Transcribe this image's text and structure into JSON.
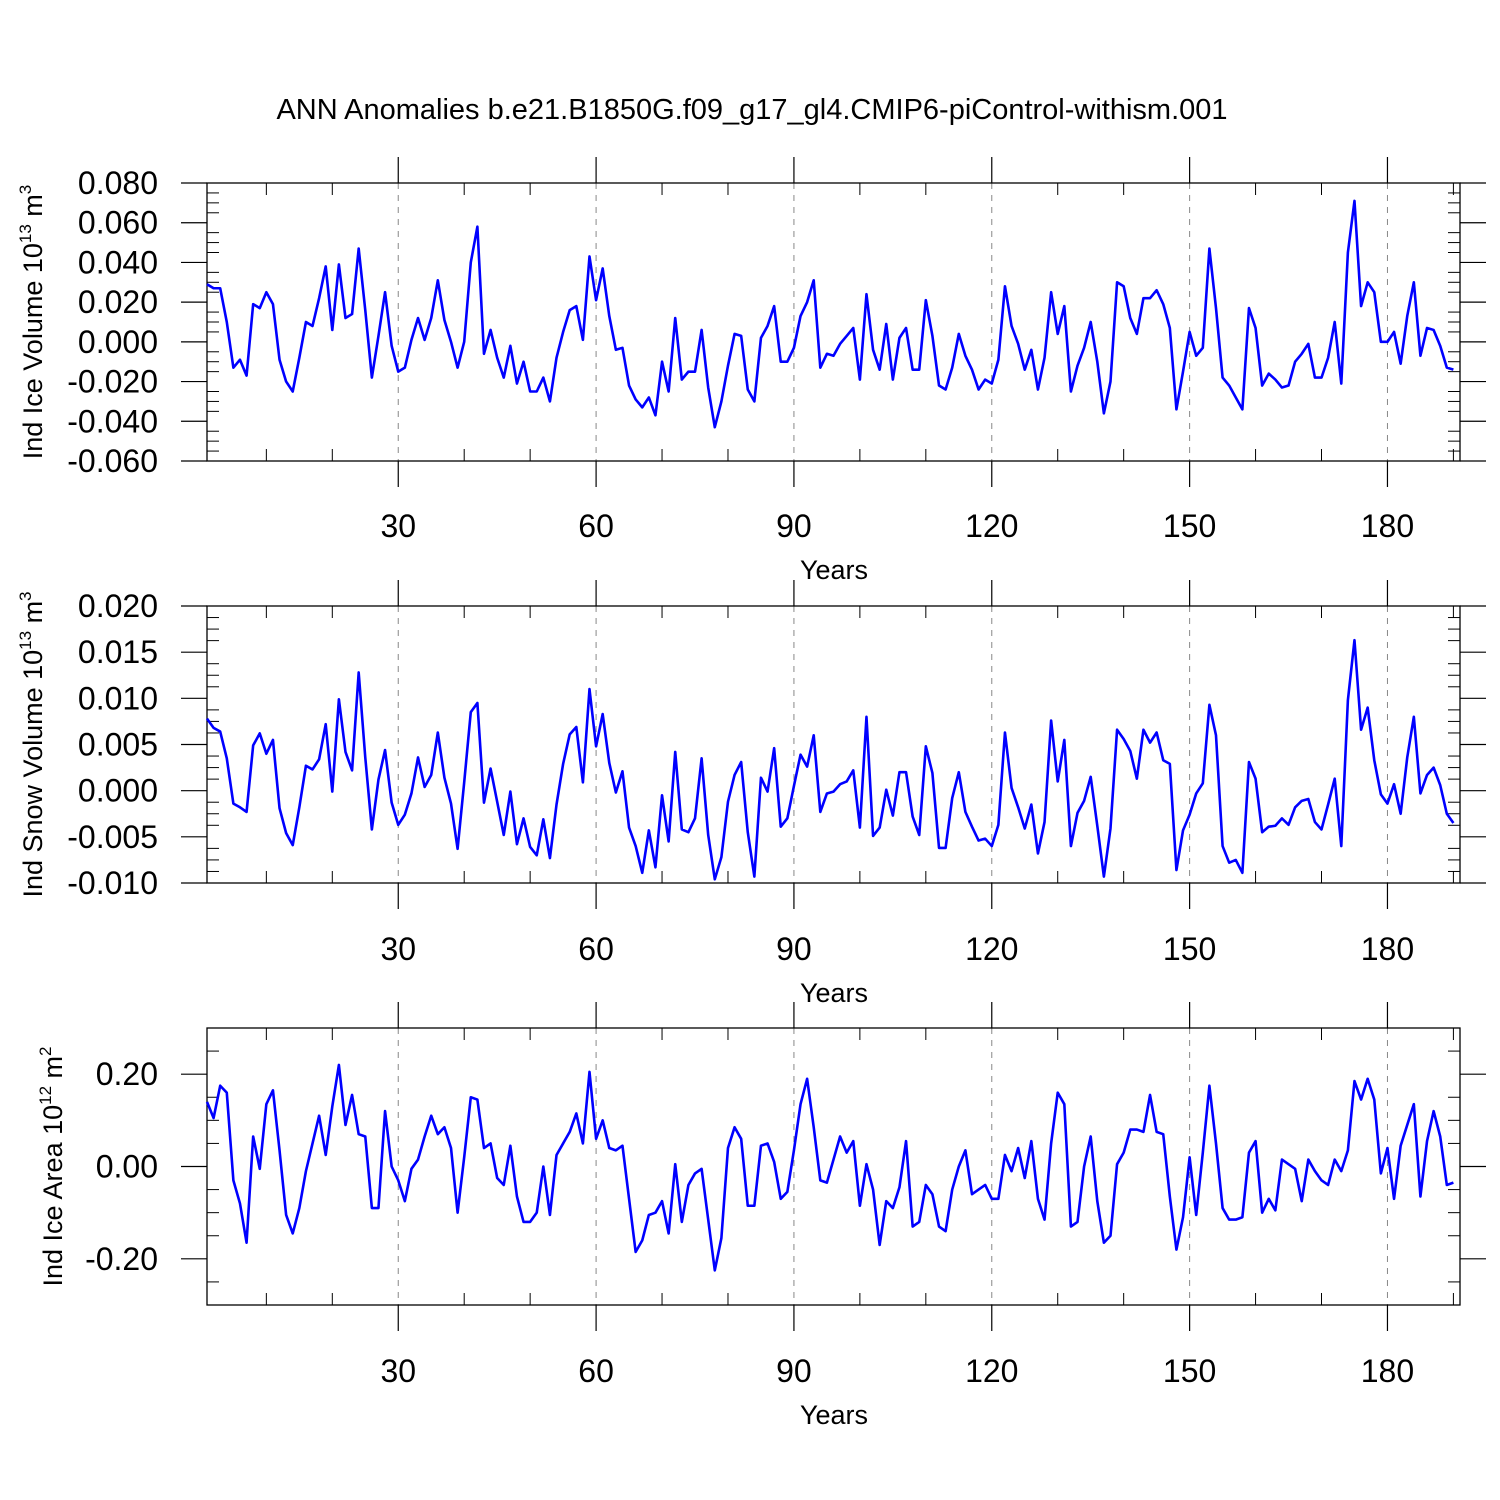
{
  "figure_title": "ANN Anomalies b.e21.B1850G.f09_g17_gl4.CMIP6-piControl-withism.001",
  "colors": {
    "line": "#0000ff",
    "frame": "#000000",
    "grid": "#888888"
  },
  "chart_data": [
    {
      "type": "line",
      "ylabel": "Ind Ice Volume 10",
      "ylabel_sup": "13",
      "ylabel_unit": " m",
      "ylabel_unit_sup": "3",
      "xlabel": "Years",
      "xlim": [
        1,
        191
      ],
      "ylim": [
        -0.06,
        0.08
      ],
      "xticks": [
        30,
        60,
        90,
        120,
        150,
        180
      ],
      "xticklabels": [
        "30",
        "60",
        "90",
        "120",
        "150",
        "180"
      ],
      "yticks": [
        -0.06,
        -0.04,
        -0.02,
        0.0,
        0.02,
        0.04,
        0.06,
        0.08
      ],
      "yticklabels": [
        "-0.060",
        "-0.040",
        "-0.020",
        "0.000",
        "0.020",
        "0.040",
        "0.060",
        "0.080"
      ],
      "grid": "x-dashed",
      "x_start": 1,
      "values": [
        0.029,
        0.027,
        0.027,
        0.01,
        -0.013,
        -0.009,
        -0.017,
        0.019,
        0.017,
        0.025,
        0.019,
        -0.009,
        -0.02,
        -0.025,
        -0.008,
        0.01,
        0.008,
        0.022,
        0.038,
        0.006,
        0.039,
        0.012,
        0.014,
        0.047,
        0.016,
        -0.018,
        0.003,
        0.025,
        -0.002,
        -0.015,
        -0.013,
        0.001,
        0.012,
        0.001,
        0.012,
        0.031,
        0.011,
        0.0,
        -0.013,
        0.0,
        0.04,
        0.058,
        -0.006,
        0.006,
        -0.008,
        -0.018,
        -0.002,
        -0.021,
        -0.01,
        -0.025,
        -0.025,
        -0.018,
        -0.03,
        -0.008,
        0.005,
        0.016,
        0.018,
        0.001,
        0.043,
        0.021,
        0.037,
        0.013,
        -0.004,
        -0.003,
        -0.022,
        -0.029,
        -0.033,
        -0.028,
        -0.037,
        -0.01,
        -0.025,
        0.012,
        -0.019,
        -0.015,
        -0.015,
        0.006,
        -0.023,
        -0.043,
        -0.03,
        -0.012,
        0.004,
        0.003,
        -0.024,
        -0.03,
        0.002,
        0.008,
        0.018,
        -0.01,
        -0.01,
        -0.003,
        0.013,
        0.02,
        0.031,
        -0.013,
        -0.006,
        -0.007,
        -0.001,
        0.003,
        0.007,
        -0.019,
        0.024,
        -0.004,
        -0.014,
        0.009,
        -0.019,
        0.002,
        0.007,
        -0.014,
        -0.014,
        0.021,
        0.003,
        -0.022,
        -0.024,
        -0.013,
        0.004,
        -0.007,
        -0.014,
        -0.024,
        -0.019,
        -0.021,
        -0.009,
        0.028,
        0.008,
        -0.001,
        -0.014,
        -0.004,
        -0.024,
        -0.008,
        0.025,
        0.004,
        0.018,
        -0.025,
        -0.012,
        -0.003,
        0.01,
        -0.01,
        -0.036,
        -0.02,
        0.03,
        0.028,
        0.012,
        0.004,
        0.022,
        0.022,
        0.026,
        0.019,
        0.007,
        -0.034,
        -0.015,
        0.005,
        -0.007,
        -0.003,
        0.047,
        0.017,
        -0.018,
        -0.022,
        -0.028,
        -0.034,
        0.017,
        0.007,
        -0.022,
        -0.016,
        -0.019,
        -0.023,
        -0.022,
        -0.01,
        -0.006,
        -0.001,
        -0.018,
        -0.018,
        -0.008,
        0.01,
        -0.021,
        0.045,
        0.071,
        0.018,
        0.03,
        0.025,
        0.0,
        0.0,
        0.005,
        -0.011,
        0.013,
        0.03,
        -0.007,
        0.007,
        0.006,
        -0.002,
        -0.013,
        -0.014
      ]
    },
    {
      "type": "line",
      "ylabel": "Ind Snow Volume 10",
      "ylabel_sup": "13",
      "ylabel_unit": " m",
      "ylabel_unit_sup": "3",
      "xlabel": "Years",
      "xlim": [
        1,
        191
      ],
      "ylim": [
        -0.01,
        0.02
      ],
      "xticks": [
        30,
        60,
        90,
        120,
        150,
        180
      ],
      "xticklabels": [
        "30",
        "60",
        "90",
        "120",
        "150",
        "180"
      ],
      "yticks": [
        -0.01,
        -0.005,
        0.0,
        0.005,
        0.01,
        0.015,
        0.02
      ],
      "yticklabels": [
        "-0.010",
        "-0.005",
        "0.000",
        "0.005",
        "0.010",
        "0.015",
        "0.020"
      ],
      "grid": "x-dashed",
      "x_start": 1,
      "values": [
        0.0078,
        0.0068,
        0.0064,
        0.0035,
        -0.0014,
        -0.0018,
        -0.0023,
        0.0049,
        0.0062,
        0.004,
        0.0055,
        -0.0019,
        -0.0046,
        -0.0059,
        -0.0018,
        0.0027,
        0.0023,
        0.0034,
        0.0072,
        -0.0001,
        0.0099,
        0.0042,
        0.0022,
        0.0128,
        0.0036,
        -0.0042,
        0.0012,
        0.0044,
        -0.0013,
        -0.0037,
        -0.0026,
        -0.0003,
        0.0036,
        0.0004,
        0.0017,
        0.0063,
        0.0014,
        -0.0014,
        -0.0063,
        0.0009,
        0.0085,
        0.0095,
        -0.0013,
        0.0024,
        -0.0012,
        -0.0048,
        -0.0001,
        -0.0058,
        -0.003,
        -0.0061,
        -0.007,
        -0.0031,
        -0.0073,
        -0.0015,
        0.0029,
        0.0061,
        0.0069,
        0.0009,
        0.011,
        0.0048,
        0.0083,
        0.003,
        -0.0002,
        0.0021,
        -0.004,
        -0.006,
        -0.0089,
        -0.0043,
        -0.0083,
        -0.0005,
        -0.0055,
        0.0042,
        -0.0042,
        -0.0045,
        -0.003,
        0.0035,
        -0.0048,
        -0.0096,
        -0.0072,
        -0.0012,
        0.0017,
        0.0031,
        -0.0045,
        -0.0093,
        0.0014,
        -0.0001,
        0.0046,
        -0.0039,
        -0.003,
        0.0005,
        0.0039,
        0.0026,
        0.006,
        -0.0023,
        -0.0003,
        -0.0001,
        0.0007,
        0.001,
        0.0022,
        -0.004,
        0.008,
        -0.0049,
        -0.004,
        0.0001,
        -0.0027,
        0.002,
        0.002,
        -0.0028,
        -0.0048,
        0.0048,
        0.0019,
        -0.0062,
        -0.0062,
        -0.0008,
        0.002,
        -0.0023,
        -0.0039,
        -0.0054,
        -0.0052,
        -0.006,
        -0.0037,
        0.0063,
        0.0003,
        -0.0018,
        -0.0041,
        -0.0015,
        -0.0068,
        -0.0034,
        0.0076,
        0.001,
        0.0055,
        -0.006,
        -0.0024,
        -0.0011,
        0.0015,
        -0.0038,
        -0.0093,
        -0.0041,
        0.0066,
        0.0056,
        0.0043,
        0.0013,
        0.0066,
        0.0052,
        0.0063,
        0.0033,
        0.0029,
        -0.0086,
        -0.0043,
        -0.0026,
        -0.0003,
        0.0008,
        0.0093,
        0.006,
        -0.006,
        -0.0078,
        -0.0075,
        -0.0089,
        0.0031,
        0.0013,
        -0.0045,
        -0.0039,
        -0.0038,
        -0.003,
        -0.0037,
        -0.0018,
        -0.0011,
        -0.0009,
        -0.0034,
        -0.0042,
        -0.0015,
        0.0013,
        -0.006,
        0.0098,
        0.0163,
        0.0066,
        0.009,
        0.0033,
        -0.0004,
        -0.0014,
        0.0007,
        -0.0025,
        0.0036,
        0.008,
        -0.0003,
        0.0017,
        0.0025,
        0.0006,
        -0.0025,
        -0.0035
      ]
    },
    {
      "type": "line",
      "ylabel": "Ind Ice Area 10",
      "ylabel_sup": "12",
      "ylabel_unit": " m",
      "ylabel_unit_sup": "2",
      "xlabel": "Years",
      "xlim": [
        1,
        191
      ],
      "ylim": [
        -0.3,
        0.3
      ],
      "xticks": [
        30,
        60,
        90,
        120,
        150,
        180
      ],
      "xticklabels": [
        "30",
        "60",
        "90",
        "120",
        "150",
        "180"
      ],
      "yticks": [
        -0.2,
        0.0,
        0.2
      ],
      "yticklabels": [
        "-0.20",
        "0.00",
        "0.20"
      ],
      "yminor": [
        -0.25,
        -0.15,
        -0.1,
        -0.05,
        0.05,
        0.1,
        0.15,
        0.25
      ],
      "grid": "x-dashed",
      "x_start": 1,
      "values": [
        0.14,
        0.105,
        0.175,
        0.16,
        -0.03,
        -0.08,
        -0.165,
        0.065,
        -0.005,
        0.135,
        0.165,
        0.035,
        -0.105,
        -0.145,
        -0.09,
        -0.01,
        0.05,
        0.11,
        0.025,
        0.13,
        0.22,
        0.09,
        0.155,
        0.07,
        0.065,
        -0.09,
        -0.09,
        0.12,
        0.0,
        -0.03,
        -0.075,
        -0.005,
        0.015,
        0.065,
        0.11,
        0.07,
        0.085,
        0.04,
        -0.1,
        0.02,
        0.15,
        0.145,
        0.04,
        0.05,
        -0.025,
        -0.04,
        0.045,
        -0.065,
        -0.12,
        -0.12,
        -0.1,
        0.0,
        -0.105,
        0.025,
        0.05,
        0.075,
        0.115,
        0.05,
        0.205,
        0.06,
        0.1,
        0.04,
        0.035,
        0.045,
        -0.07,
        -0.185,
        -0.16,
        -0.105,
        -0.1,
        -0.075,
        -0.145,
        0.005,
        -0.12,
        -0.04,
        -0.015,
        -0.005,
        -0.115,
        -0.225,
        -0.155,
        0.04,
        0.085,
        0.06,
        -0.085,
        -0.085,
        0.045,
        0.05,
        0.01,
        -0.07,
        -0.055,
        0.035,
        0.135,
        0.19,
        0.085,
        -0.03,
        -0.035,
        0.015,
        0.065,
        0.03,
        0.055,
        -0.085,
        0.005,
        -0.05,
        -0.17,
        -0.075,
        -0.09,
        -0.045,
        0.055,
        -0.13,
        -0.12,
        -0.04,
        -0.06,
        -0.13,
        -0.14,
        -0.05,
        0.0,
        0.035,
        -0.06,
        -0.05,
        -0.04,
        -0.07,
        -0.07,
        0.025,
        -0.01,
        0.04,
        -0.025,
        0.055,
        -0.07,
        -0.115,
        0.05,
        0.16,
        0.135,
        -0.13,
        -0.12,
        0.0,
        0.065,
        -0.075,
        -0.165,
        -0.15,
        0.005,
        0.03,
        0.08,
        0.08,
        0.075,
        0.155,
        0.075,
        0.07,
        -0.065,
        -0.18,
        -0.11,
        0.02,
        -0.105,
        0.03,
        0.175,
        0.05,
        -0.09,
        -0.115,
        -0.115,
        -0.11,
        0.03,
        0.055,
        -0.1,
        -0.07,
        -0.095,
        0.015,
        0.005,
        -0.005,
        -0.075,
        0.015,
        -0.01,
        -0.03,
        -0.04,
        0.015,
        -0.01,
        0.035,
        0.185,
        0.145,
        0.19,
        0.145,
        -0.015,
        0.04,
        -0.07,
        0.045,
        0.09,
        0.135,
        -0.065,
        0.055,
        0.12,
        0.065,
        -0.04,
        -0.035
      ]
    }
  ]
}
